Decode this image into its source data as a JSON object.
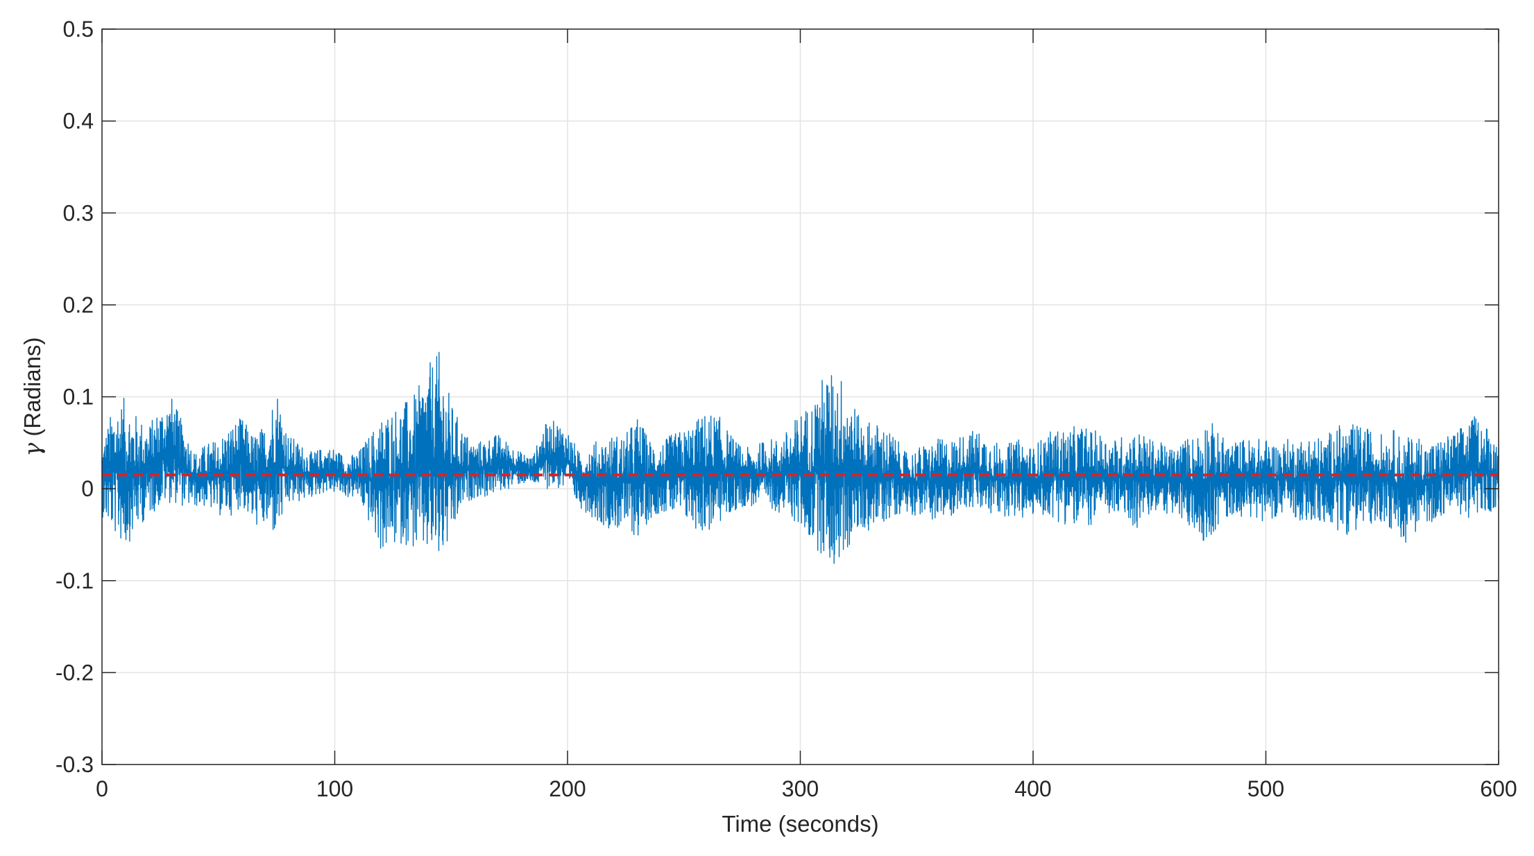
{
  "chart_data": {
    "type": "line",
    "title": "",
    "xlabel": "Time (seconds)",
    "ylabel_symbol": "γ",
    "ylabel_text": " (Radians)",
    "xlim": [
      0,
      600
    ],
    "ylim": [
      -0.3,
      0.5
    ],
    "x_ticks": [
      0,
      100,
      200,
      300,
      400,
      500,
      600
    ],
    "x_tick_labels": [
      "0",
      "100",
      "200",
      "300",
      "400",
      "500",
      "600"
    ],
    "y_ticks": [
      -0.3,
      -0.2,
      -0.1,
      0,
      0.1,
      0.2,
      0.3,
      0.4,
      0.5
    ],
    "y_tick_labels": [
      "-0.3",
      "-0.2",
      "-0.1",
      "0",
      "0.1",
      "0.2",
      "0.3",
      "0.4",
      "0.5"
    ],
    "grid": true,
    "legend": "none",
    "series": [
      {
        "style": "solid",
        "color": "#0072BD",
        "envelope_note_free": true,
        "x": [
          0,
          5,
          10,
          15,
          20,
          25,
          30,
          35,
          40,
          45,
          50,
          55,
          60,
          65,
          70,
          75,
          80,
          85,
          90,
          95,
          100,
          105,
          110,
          115,
          120,
          125,
          130,
          135,
          140,
          145,
          150,
          155,
          160,
          165,
          170,
          175,
          180,
          185,
          190,
          195,
          200,
          205,
          210,
          215,
          220,
          225,
          230,
          235,
          240,
          245,
          250,
          255,
          260,
          265,
          270,
          275,
          280,
          285,
          290,
          295,
          300,
          305,
          310,
          315,
          320,
          325,
          330,
          335,
          340,
          345,
          350,
          355,
          360,
          365,
          370,
          375,
          380,
          385,
          390,
          395,
          400,
          405,
          410,
          415,
          420,
          425,
          430,
          435,
          440,
          445,
          450,
          455,
          460,
          465,
          470,
          475,
          480,
          485,
          490,
          495,
          500,
          505,
          510,
          515,
          520,
          525,
          530,
          535,
          540,
          545,
          550,
          555,
          560,
          565,
          570,
          575,
          580,
          585,
          590,
          595,
          600
        ],
        "max": [
          0.05,
          0.092,
          0.1,
          0.08,
          0.07,
          0.09,
          0.1,
          0.07,
          0.04,
          0.05,
          0.055,
          0.07,
          0.078,
          0.06,
          0.07,
          0.115,
          0.06,
          0.05,
          0.04,
          0.045,
          0.045,
          0.035,
          0.04,
          0.06,
          0.08,
          0.09,
          0.095,
          0.105,
          0.135,
          0.15,
          0.095,
          0.065,
          0.05,
          0.055,
          0.06,
          0.05,
          0.04,
          0.035,
          0.07,
          0.075,
          0.065,
          0.04,
          0.05,
          0.055,
          0.06,
          0.06,
          0.08,
          0.055,
          0.05,
          0.06,
          0.065,
          0.075,
          0.085,
          0.08,
          0.06,
          0.045,
          0.045,
          0.055,
          0.055,
          0.065,
          0.085,
          0.095,
          0.125,
          0.13,
          0.12,
          0.08,
          0.075,
          0.07,
          0.06,
          0.04,
          0.045,
          0.05,
          0.055,
          0.055,
          0.06,
          0.065,
          0.06,
          0.05,
          0.05,
          0.055,
          0.045,
          0.06,
          0.065,
          0.065,
          0.07,
          0.065,
          0.06,
          0.055,
          0.06,
          0.065,
          0.055,
          0.05,
          0.045,
          0.055,
          0.06,
          0.08,
          0.06,
          0.05,
          0.055,
          0.055,
          0.055,
          0.05,
          0.055,
          0.055,
          0.06,
          0.055,
          0.07,
          0.07,
          0.07,
          0.065,
          0.06,
          0.065,
          0.055,
          0.06,
          0.05,
          0.055,
          0.06,
          0.07,
          0.08,
          0.07,
          0.05
        ],
        "min": [
          -0.03,
          -0.05,
          -0.065,
          -0.045,
          -0.03,
          -0.02,
          -0.015,
          -0.02,
          -0.02,
          -0.02,
          -0.03,
          -0.03,
          -0.02,
          -0.04,
          -0.045,
          -0.055,
          -0.02,
          -0.015,
          -0.01,
          -0.005,
          -0.005,
          -0.01,
          -0.01,
          -0.04,
          -0.07,
          -0.065,
          -0.06,
          -0.07,
          -0.075,
          -0.085,
          -0.06,
          -0.02,
          -0.01,
          -0.01,
          -0.005,
          0.0,
          0.005,
          0.005,
          0.0,
          0.0,
          -0.005,
          -0.02,
          -0.03,
          -0.04,
          -0.045,
          -0.045,
          -0.055,
          -0.035,
          -0.025,
          -0.03,
          -0.035,
          -0.045,
          -0.05,
          -0.04,
          -0.03,
          -0.02,
          -0.02,
          -0.02,
          -0.025,
          -0.03,
          -0.045,
          -0.06,
          -0.075,
          -0.09,
          -0.07,
          -0.05,
          -0.045,
          -0.04,
          -0.03,
          -0.025,
          -0.03,
          -0.03,
          -0.04,
          -0.03,
          -0.02,
          -0.025,
          -0.03,
          -0.03,
          -0.03,
          -0.035,
          -0.03,
          -0.03,
          -0.035,
          -0.04,
          -0.045,
          -0.04,
          -0.03,
          -0.03,
          -0.035,
          -0.045,
          -0.03,
          -0.025,
          -0.03,
          -0.04,
          -0.05,
          -0.06,
          -0.04,
          -0.03,
          -0.03,
          -0.035,
          -0.035,
          -0.03,
          -0.03,
          -0.035,
          -0.04,
          -0.04,
          -0.045,
          -0.05,
          -0.045,
          -0.04,
          -0.035,
          -0.05,
          -0.06,
          -0.045,
          -0.04,
          -0.03,
          -0.025,
          -0.03,
          -0.035,
          -0.03,
          -0.02
        ]
      },
      {
        "style": "dashed",
        "color": "#E02020",
        "x": [
          0,
          600
        ],
        "y": [
          0.015,
          0.015
        ]
      }
    ]
  }
}
